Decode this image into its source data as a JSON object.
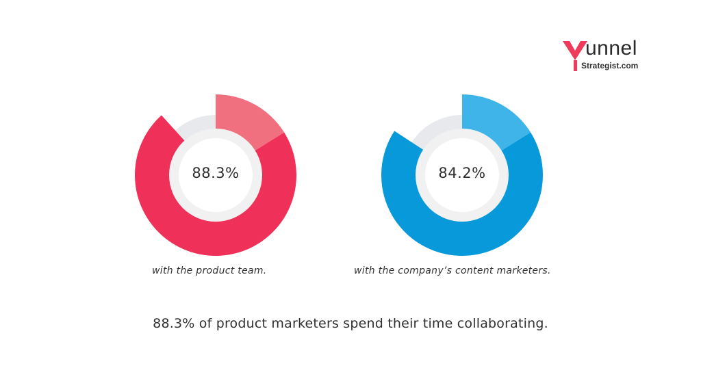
{
  "logo": {
    "main": "unnel",
    "sub": "Strategist.com",
    "mark_color": "#ee3a5b"
  },
  "headline": "88.3% of product marketers spend their time collaborating.",
  "chart_data": [
    {
      "type": "donut",
      "center_label": "88.3%",
      "value_pct": 88.3,
      "caption": "with the product team.",
      "colors": {
        "main": "#ef3058",
        "highlight": "#f1707f",
        "track": "#e8e9ec",
        "inner": "#f1f1f2"
      }
    },
    {
      "type": "donut",
      "center_label": "84.2%",
      "value_pct": 84.2,
      "caption": "with the company’s content marketers.",
      "colors": {
        "main": "#0799d9",
        "highlight": "#3fb4e8",
        "track": "#e8e9ec",
        "inner": "#f1f1f2"
      }
    }
  ]
}
